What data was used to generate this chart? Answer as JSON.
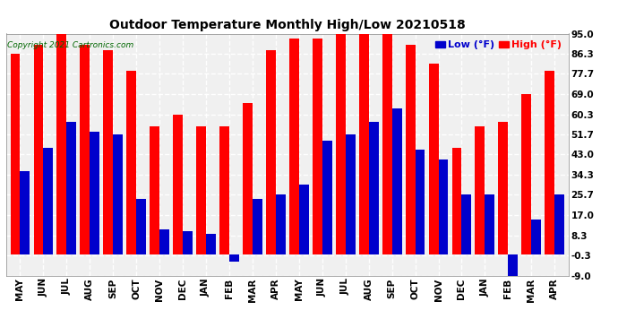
{
  "title": "Outdoor Temperature Monthly High/Low 20210518",
  "copyright": "Copyright 2021 Cartronics.com",
  "categories": [
    "MAY",
    "JUN",
    "JUL",
    "AUG",
    "SEP",
    "OCT",
    "NOV",
    "DEC",
    "JAN",
    "FEB",
    "MAR",
    "APR",
    "MAY",
    "JUN",
    "JUL",
    "AUG",
    "SEP",
    "OCT",
    "NOV",
    "DEC",
    "JAN",
    "FEB",
    "MAR",
    "APR"
  ],
  "high_values": [
    86.3,
    90.0,
    95.0,
    90.0,
    88.0,
    79.0,
    55.0,
    60.3,
    55.0,
    55.0,
    65.0,
    88.0,
    93.0,
    93.0,
    95.0,
    95.0,
    95.0,
    90.0,
    82.0,
    46.0,
    55.0,
    57.0,
    69.0,
    79.0
  ],
  "low_values": [
    36.0,
    46.0,
    57.0,
    53.0,
    51.7,
    24.0,
    11.0,
    10.0,
    9.0,
    -3.0,
    24.0,
    26.0,
    30.0,
    49.0,
    51.7,
    57.0,
    63.0,
    45.0,
    41.0,
    26.0,
    26.0,
    -9.0,
    15.0,
    26.0
  ],
  "high_color": "#ff0000",
  "low_color": "#0000cc",
  "background_color": "#ffffff",
  "plot_bg_color": "#f0f0f0",
  "grid_color": "#ffffff",
  "ylim": [
    -9.0,
    95.0
  ],
  "yticks": [
    -9.0,
    -0.3,
    8.3,
    17.0,
    25.7,
    34.3,
    43.0,
    51.7,
    60.3,
    69.0,
    77.7,
    86.3,
    95.0
  ],
  "legend_low_label": "Low (°F)",
  "legend_high_label": "High (°F)"
}
